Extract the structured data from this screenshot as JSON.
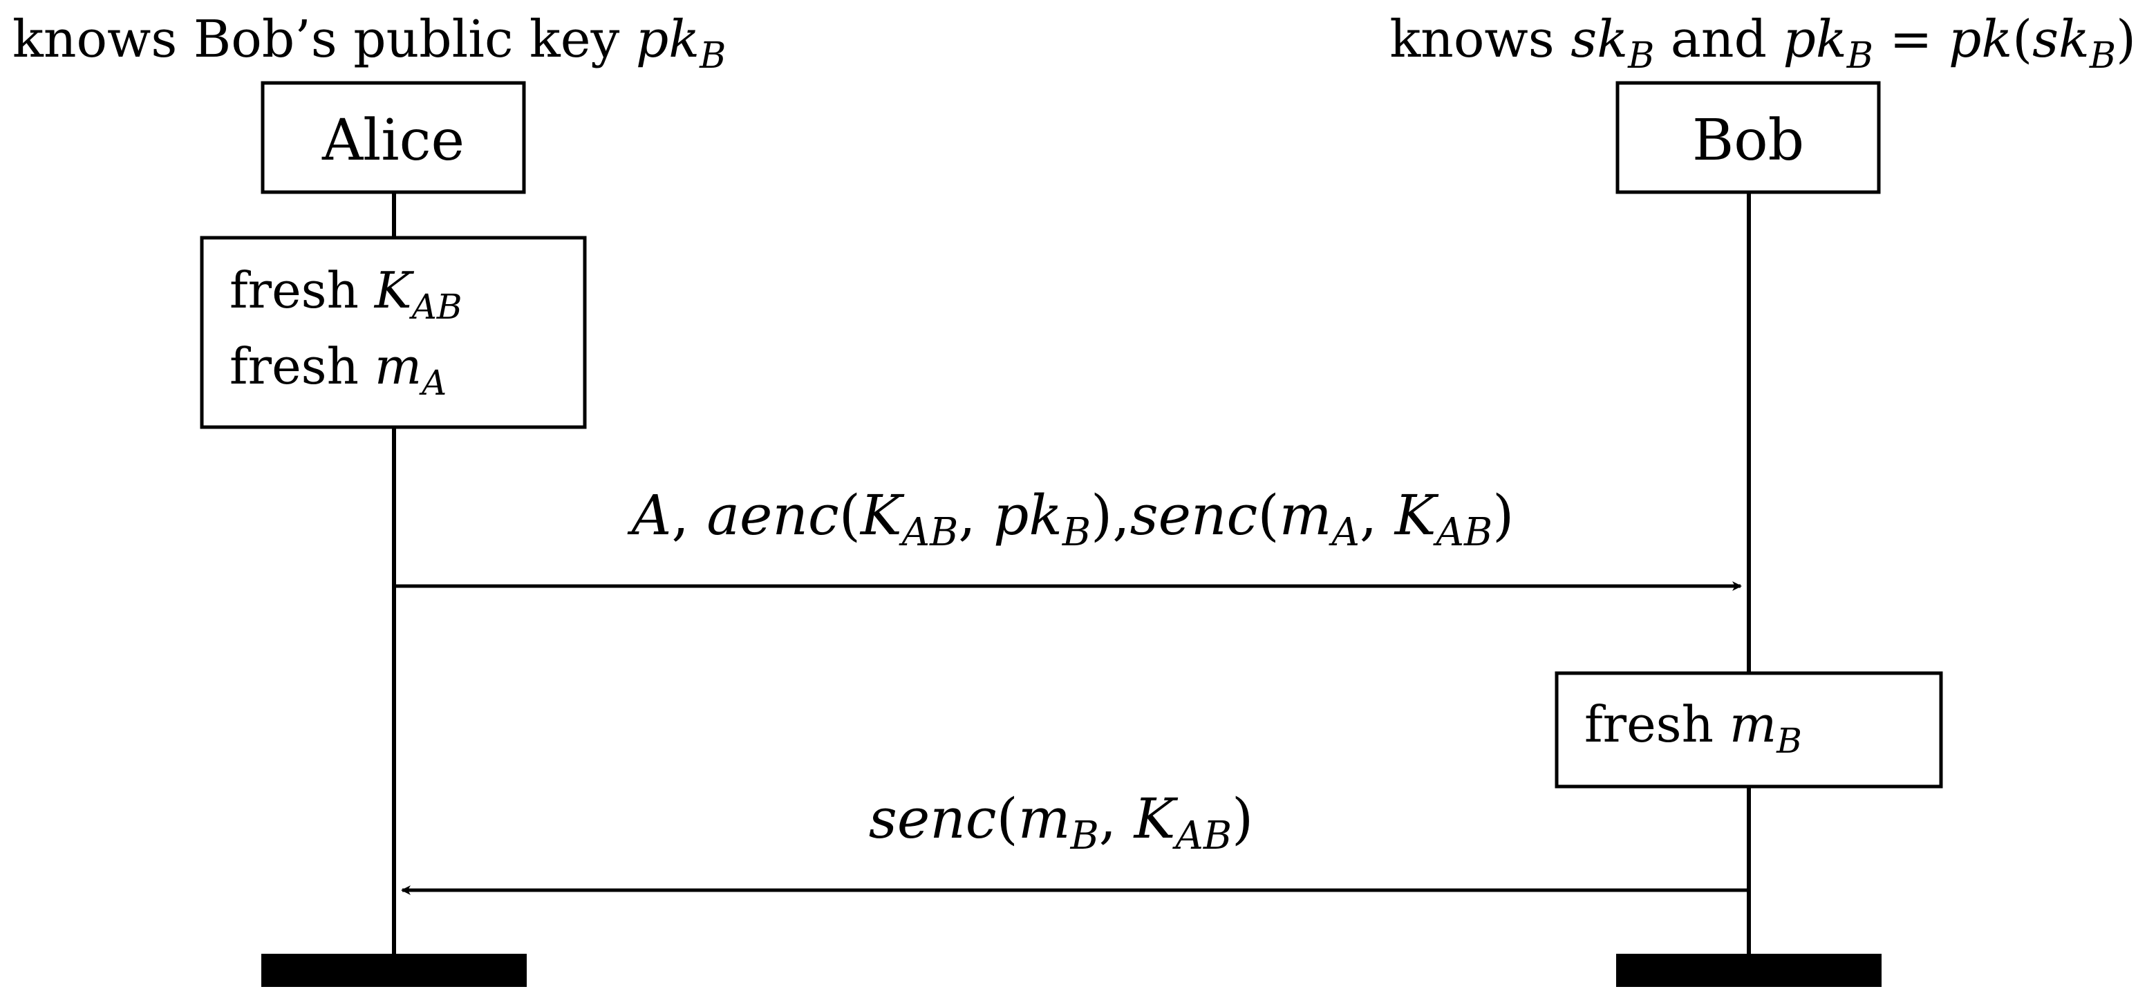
{
  "participants": {
    "alice": {
      "name": "Alice",
      "knowledge": {
        "prefix": "knows Bob’s public key ",
        "var": "pk",
        "sub": "B"
      },
      "actions": [
        {
          "prefix": "fresh ",
          "var": "K",
          "sub": "AB"
        },
        {
          "prefix": "fresh ",
          "var": "m",
          "sub": "A"
        }
      ]
    },
    "bob": {
      "name": "Bob",
      "knowledge": {
        "prefix": "knows ",
        "var1": "sk",
        "sub1": "B",
        "mid": " and ",
        "var2": "pk",
        "sub2": "B",
        "eq": " = ",
        "func": "pk",
        "open": "(",
        "var3": "sk",
        "sub3": "B",
        "close": ")"
      },
      "actions": [
        {
          "prefix": "fresh ",
          "var": "m",
          "sub": "B"
        }
      ]
    }
  },
  "messages": [
    {
      "direction": "alice-to-bob",
      "parts": {
        "a": "A",
        "comma1": ", ",
        "aenc": "aenc",
        "open1": "(",
        "k1": "K",
        "k1sub": "AB",
        "comma2": ", ",
        "pk": "pk",
        "pksub": "B",
        "close1": ")",
        "comma3": ",",
        "senc": "senc",
        "open2": "(",
        "m": "m",
        "msub": "A",
        "comma4": ", ",
        "k2": "K",
        "k2sub": "AB",
        "close2": ")"
      }
    },
    {
      "direction": "bob-to-alice",
      "parts": {
        "senc": "senc",
        "open": "(",
        "m": "m",
        "msub": "B",
        "comma": ", ",
        "k": "K",
        "ksub": "AB",
        "close": ")"
      }
    }
  ]
}
